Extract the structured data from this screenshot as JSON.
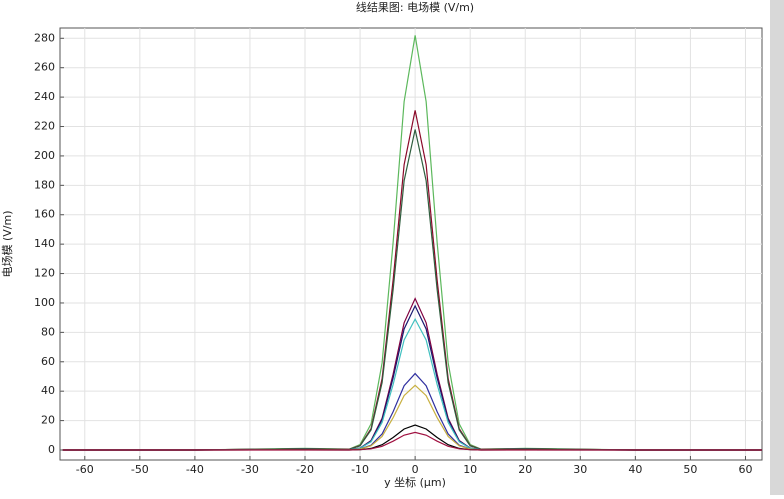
{
  "chart_data": {
    "type": "line",
    "title": "线结果图: 电场模 (V/m)",
    "x_label": "y 坐标 (µm)",
    "y_label": "电场模 (V/m)",
    "x": [
      -64,
      -40,
      -20,
      -12,
      -10,
      -8,
      -6,
      -4,
      -2,
      0,
      2,
      4,
      6,
      8,
      10,
      12,
      20,
      40,
      63
    ],
    "series": [
      {
        "color": "#5cb85c",
        "values": [
          0,
          0,
          1.1,
          0.6,
          3.7,
          17.8,
          59.2,
          141,
          236.9,
          282,
          236.9,
          141,
          59.2,
          17.8,
          3.7,
          0.6,
          1.1,
          0,
          0
        ]
      },
      {
        "color": "#8b0a2a",
        "values": [
          0,
          0,
          0.9,
          0.5,
          3,
          14.6,
          48.5,
          115.5,
          194,
          231,
          194,
          115.5,
          48.5,
          14.6,
          3,
          0.5,
          0.9,
          0,
          0
        ]
      },
      {
        "color": "#2f5e3e",
        "values": [
          0,
          0,
          0.9,
          0.4,
          2.8,
          13.7,
          45.8,
          109,
          183.1,
          218,
          183.1,
          109,
          45.8,
          13.7,
          2.8,
          0.4,
          0.9,
          0,
          0
        ]
      },
      {
        "color": "#800040",
        "values": [
          0,
          0,
          0.4,
          0.2,
          1.3,
          6.5,
          21.6,
          51.5,
          86.5,
          103,
          86.5,
          51.5,
          21.6,
          6.5,
          1.3,
          0.2,
          0.4,
          0,
          0
        ]
      },
      {
        "color": "#1a1a70",
        "values": [
          0,
          0,
          0.4,
          0.2,
          1.3,
          6.2,
          20.6,
          49,
          82.3,
          98,
          82.3,
          49,
          20.6,
          6.2,
          1.3,
          0.2,
          0.4,
          0,
          0
        ]
      },
      {
        "color": "#40c0c0",
        "values": [
          0,
          0,
          0.4,
          0.2,
          1.2,
          5.6,
          18.7,
          44.5,
          74.8,
          89,
          74.8,
          44.5,
          18.7,
          5.6,
          1.2,
          0.2,
          0.4,
          0,
          0
        ]
      },
      {
        "color": "#3030a0",
        "values": [
          0,
          0,
          0.2,
          0.1,
          0.7,
          3.3,
          10.9,
          26,
          43.7,
          52,
          43.7,
          26,
          10.9,
          3.3,
          0.7,
          0.1,
          0.2,
          0,
          0
        ]
      },
      {
        "color": "#c8b040",
        "values": [
          0,
          0,
          0.2,
          0.1,
          0.6,
          2.8,
          9.2,
          22,
          37,
          44,
          37,
          22,
          9.2,
          2.8,
          0.6,
          0.1,
          0.2,
          0,
          0
        ]
      },
      {
        "color": "#000000",
        "values": [
          0,
          0,
          0.1,
          0,
          0.2,
          1.1,
          3.6,
          8.5,
          14.3,
          17,
          14.3,
          8.5,
          3.6,
          1.1,
          0.2,
          0,
          0.1,
          0,
          0
        ]
      },
      {
        "color": "#a01040",
        "values": [
          0,
          0,
          0,
          0,
          0.2,
          0.8,
          2.5,
          6,
          10.1,
          12,
          10.1,
          6,
          2.5,
          0.8,
          0.2,
          0,
          0,
          0,
          0
        ]
      }
    ],
    "xlim": [
      -64.5,
      63
    ],
    "ylim": [
      -6.8,
      287
    ],
    "xticks": [
      -60,
      -50,
      -40,
      -30,
      -20,
      -10,
      0,
      10,
      20,
      30,
      40,
      50,
      60
    ],
    "yticks": [
      0,
      20,
      40,
      60,
      80,
      100,
      120,
      140,
      160,
      180,
      200,
      220,
      240,
      260,
      280
    ],
    "grid": true
  }
}
